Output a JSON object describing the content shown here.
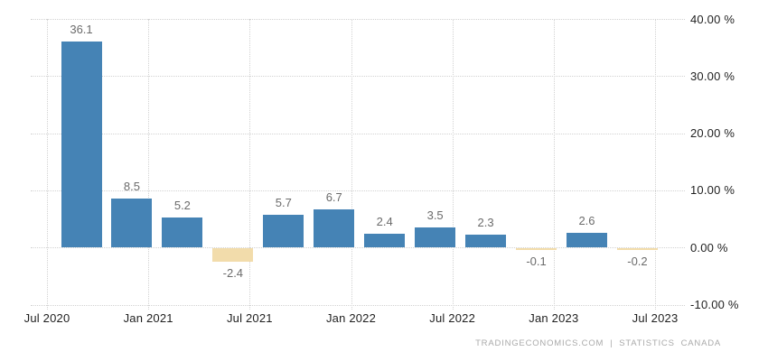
{
  "chart_data": {
    "type": "bar",
    "title": "",
    "xlabel": "",
    "ylabel": "",
    "unit": "%",
    "values": [
      36.1,
      8.5,
      5.2,
      -2.4,
      5.7,
      6.7,
      2.4,
      3.5,
      2.3,
      -0.1,
      2.6,
      -0.2
    ],
    "bar_labels": [
      "36.1",
      "8.5",
      "5.2",
      "-2.4",
      "5.7",
      "6.7",
      "2.4",
      "3.5",
      "2.3",
      "-0.1",
      "2.6",
      "-0.2"
    ],
    "x_tick_labels": [
      "Jul 2020",
      "Jan 2021",
      "Jul 2021",
      "Jan 2022",
      "Jul 2022",
      "Jan 2023",
      "Jul 2023"
    ],
    "y_ticks": [
      40,
      30,
      20,
      10,
      0,
      -10
    ],
    "y_tick_labels": [
      "40.00 %",
      "30.00 %",
      "20.00 %",
      "10.00 %",
      "0.00 %",
      "-10.00 %"
    ],
    "ylim": [
      -10,
      40
    ],
    "grid": "dotted",
    "legend": "none",
    "colors": {
      "positive_bar": "#4583b5",
      "negative_bar": "#f2dcab",
      "gridline": "#d2d2d2",
      "axis_text": "#1f1f1f",
      "value_label": "#6b6b6b",
      "footer_text": "#aaaaaa"
    }
  },
  "footer": {
    "source": "TRADINGECONOMICS.COM  |  STATISTICS  CANADA"
  }
}
